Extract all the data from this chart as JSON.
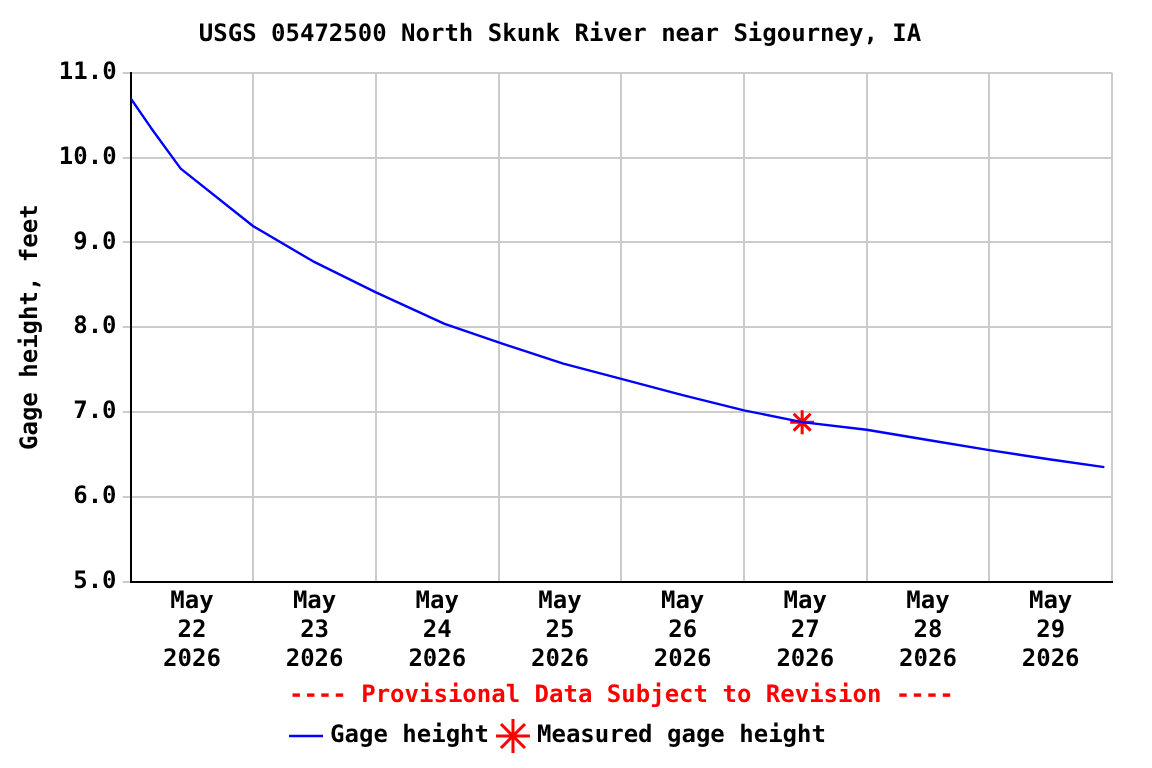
{
  "chart_data": {
    "type": "line",
    "title": "USGS 05472500 North Skunk River near Sigourney, IA",
    "ylabel": "Gage height, feet",
    "xlim": [
      "2026-05-22T00:00",
      "2026-05-30T00:00"
    ],
    "xticks": [
      {
        "value": "2026-05-22T00:00",
        "label": null
      },
      {
        "value": "2026-05-22T12:00",
        "label": "May\n22\n2026"
      },
      {
        "value": "2026-05-23T00:00",
        "label": null
      },
      {
        "value": "2026-05-23T12:00",
        "label": "May\n23\n2026"
      },
      {
        "value": "2026-05-24T00:00",
        "label": null
      },
      {
        "value": "2026-05-24T12:00",
        "label": "May\n24\n2026"
      },
      {
        "value": "2026-05-25T00:00",
        "label": null
      },
      {
        "value": "2026-05-25T12:00",
        "label": "May\n25\n2026"
      },
      {
        "value": "2026-05-26T00:00",
        "label": null
      },
      {
        "value": "2026-05-26T12:00",
        "label": "May\n26\n2026"
      },
      {
        "value": "2026-05-27T00:00",
        "label": null
      },
      {
        "value": "2026-05-27T12:00",
        "label": "May\n27\n2026"
      },
      {
        "value": "2026-05-28T00:00",
        "label": null
      },
      {
        "value": "2026-05-28T12:00",
        "label": "May\n28\n2026"
      },
      {
        "value": "2026-05-29T00:00",
        "label": null
      },
      {
        "value": "2026-05-29T12:00",
        "label": "May\n29\n2026"
      },
      {
        "value": "2026-05-30T00:00",
        "label": null
      }
    ],
    "ylim": [
      5,
      11
    ],
    "yticks": [
      {
        "value": 5,
        "label": "5.0"
      },
      {
        "value": 6,
        "label": "6.0"
      },
      {
        "value": 7,
        "label": "7.0"
      },
      {
        "value": 8,
        "label": "8.0"
      },
      {
        "value": 9,
        "label": "9.0"
      },
      {
        "value": 10,
        "label": "10.0"
      },
      {
        "value": 11,
        "label": "11.0"
      }
    ],
    "grid": true,
    "legend": "bottom",
    "annotations": [
      "---- Provisional Data Subject to Revision ----"
    ],
    "series": [
      {
        "name": "Gage height",
        "color": "#0000ff",
        "marker": "none",
        "x": [
          "2026-05-22T00:00",
          "2026-05-22T04:00",
          "2026-05-22T09:48",
          "2026-05-23T00:00",
          "2026-05-23T11:37",
          "2026-05-24T00:00",
          "2026-05-24T13:26",
          "2026-05-25T00:00",
          "2026-05-25T12:39",
          "2026-05-26T00:00",
          "2026-05-26T12:00",
          "2026-05-27T00:00",
          "2026-05-27T11:23",
          "2026-05-28T00:00",
          "2026-05-28T12:00",
          "2026-05-29T00:00",
          "2026-05-29T12:00",
          "2026-05-29T22:30"
        ],
        "values": [
          10.7,
          10.35,
          9.87,
          9.19,
          8.78,
          8.41,
          8.04,
          7.82,
          7.57,
          7.39,
          7.2,
          7.02,
          6.88,
          6.79,
          6.67,
          6.55,
          6.44,
          6.35
        ]
      },
      {
        "name": "Measured gage height",
        "type": "scatter",
        "color": "#ff0000",
        "marker": "cross",
        "x": [
          "2026-05-27T11:23"
        ],
        "values": [
          6.88
        ]
      }
    ]
  }
}
